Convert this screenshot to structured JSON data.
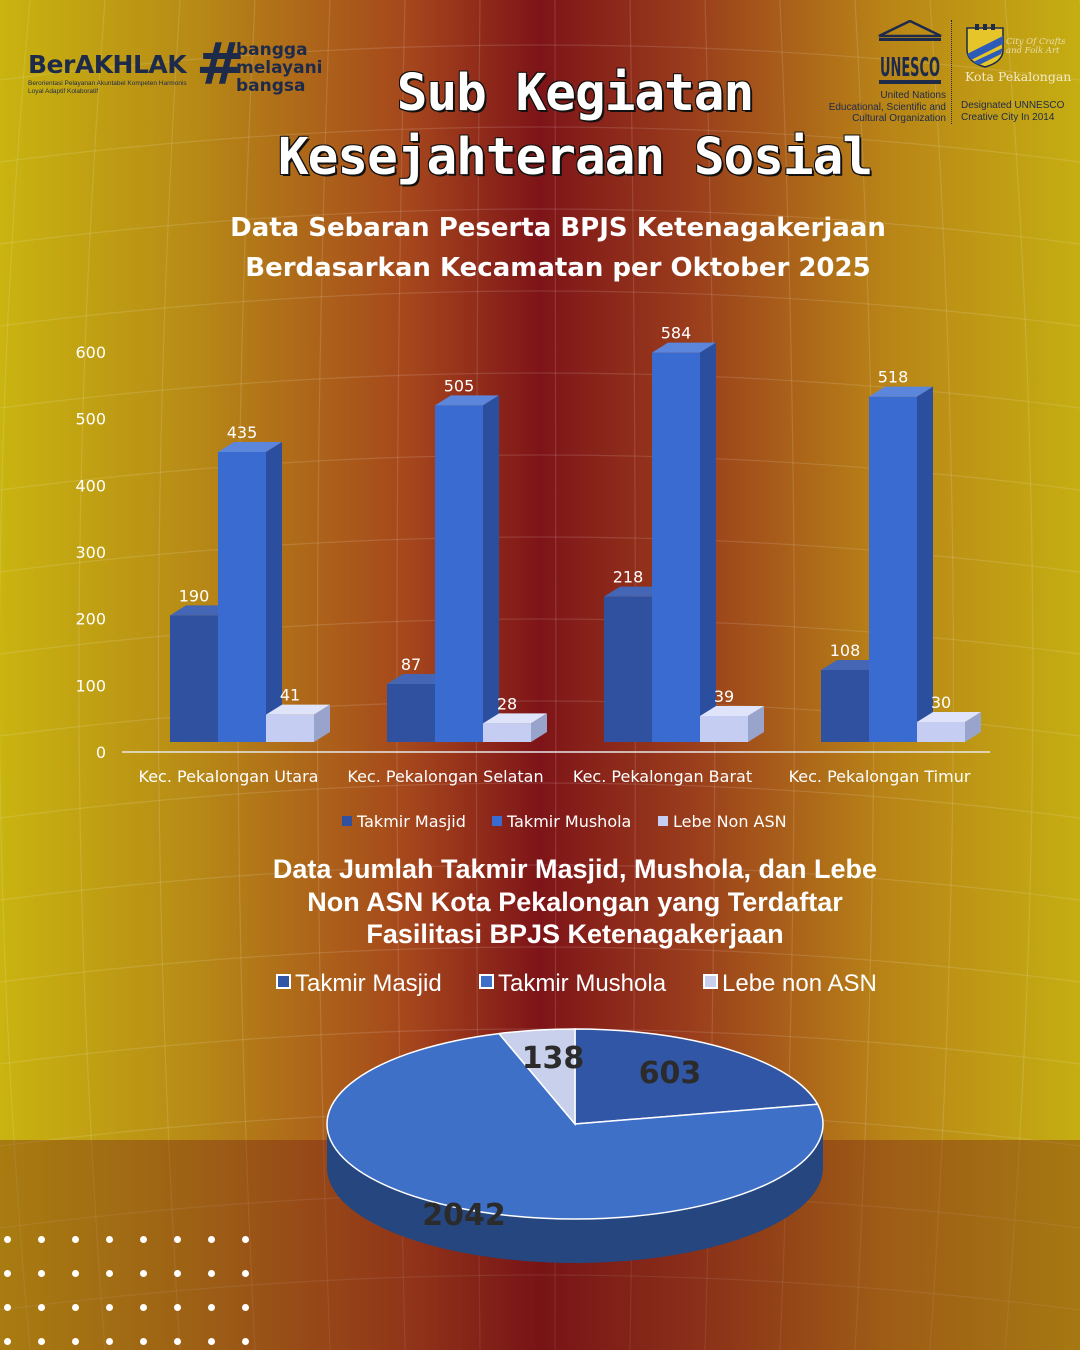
{
  "branding": {
    "berakhlak": "BerAKHLAK",
    "berakhlak_sub": "Berorientasi Pelayanan Akuntabel Kompeten Harmonis Loyal Adaptif Kolaboratif",
    "hash": "#",
    "tagline": [
      "bangga",
      "melayani",
      "bangsa"
    ],
    "unesco": "UNESCO",
    "unesco_caption": [
      "United Nations",
      "Educational, Scientific and",
      "Cultural Organization"
    ],
    "city_tag": "City Of Crafts and Folk Art",
    "city_name": "Kota Pekalongan",
    "city_caption": [
      "Designated UNNESCO",
      "Creative City In 2014"
    ]
  },
  "title": [
    "Sub Kegiatan",
    "Kesejahteraan Sosial"
  ],
  "chart_data": [
    {
      "type": "bar",
      "title": [
        "Data Sebaran Peserta BPJS Ketenagakerjaan",
        "Berdasarkan Kecamatan per Oktober 2025"
      ],
      "categories": [
        "Kec. Pekalongan Utara",
        "Kec. Pekalongan Selatan",
        "Kec. Pekalongan Barat",
        "Kec. Pekalongan Timur"
      ],
      "series": [
        {
          "name": "Takmir Masjid",
          "values": [
            190,
            87,
            218,
            108
          ]
        },
        {
          "name": "Takmir Mushola",
          "values": [
            435,
            505,
            584,
            518
          ]
        },
        {
          "name": "Lebe Non ASN",
          "values": [
            41,
            28,
            39,
            30
          ]
        }
      ],
      "yticks": [
        0,
        100,
        200,
        300,
        400,
        500,
        600
      ],
      "ylim": [
        0,
        600
      ],
      "legend": "bottom",
      "colors": [
        "#3050a0",
        "#3a6bd0",
        "#c5cef2"
      ]
    },
    {
      "type": "pie",
      "title": [
        "Data Jumlah Takmir Masjid, Mushola, dan Lebe",
        "Non ASN Kota Pekalongan yang Terdaftar",
        "Fasilitasi BPJS Ketenagakerjaan"
      ],
      "labels": [
        "Takmir Masjid",
        "Takmir Mushola",
        "Lebe non ASN"
      ],
      "values": [
        603,
        2042,
        138
      ],
      "legend": "top",
      "colors": [
        "#3256a6",
        "#3f70c8",
        "#c9d0ec"
      ]
    }
  ]
}
